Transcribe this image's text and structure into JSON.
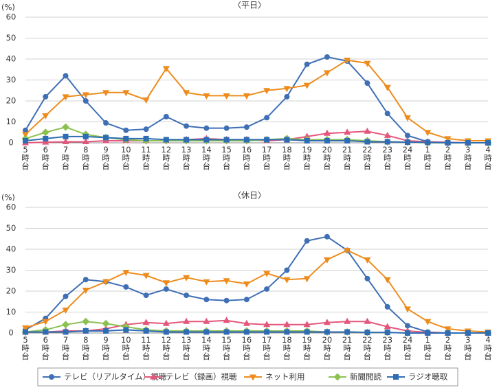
{
  "chart_data": [
    {
      "type": "line",
      "title": "〈平日〉",
      "y_label": "(%)",
      "ylim": [
        0,
        60
      ],
      "yticks": [
        0,
        10,
        20,
        30,
        40,
        50,
        60
      ],
      "grid": true,
      "categories": [
        "5時台",
        "6時台",
        "7時台",
        "8時台",
        "9時台",
        "10時台",
        "11時台",
        "12時台",
        "13時台",
        "14時台",
        "15時台",
        "16時台",
        "17時台",
        "18時台",
        "19時台",
        "20時台",
        "21時台",
        "22時台",
        "23時台",
        "24時台",
        "1時台",
        "2時台",
        "3時台",
        "4時台"
      ],
      "series": [
        {
          "name": "テレビ（リアルタイム）視聴",
          "color": "#3f6fb5",
          "marker": "circle",
          "values": [
            6,
            22,
            32,
            20,
            9.5,
            6,
            6.5,
            12.5,
            8,
            7,
            7,
            7.5,
            12,
            22,
            37.5,
            41,
            39,
            28.5,
            14,
            3.5,
            0.5,
            0,
            0,
            0
          ]
        },
        {
          "name": "テレビ（録画）視聴",
          "color": "#e4567b",
          "marker": "triangle",
          "values": [
            0,
            0.3,
            0.5,
            0.5,
            1,
            1,
            1,
            1,
            1.5,
            2,
            1.5,
            1.5,
            1,
            1.5,
            3,
            4.5,
            5,
            5.5,
            3.5,
            1,
            0.5,
            0.3,
            0,
            0
          ]
        },
        {
          "name": "ネット利用",
          "color": "#ed8c1c",
          "marker": "triangle-down",
          "values": [
            4,
            13,
            22,
            23,
            24,
            24,
            20.5,
            35.5,
            24,
            22.5,
            22.5,
            22.5,
            25,
            26,
            27.5,
            33.5,
            39.5,
            38,
            26.5,
            12,
            5,
            2,
            1,
            1
          ]
        },
        {
          "name": "新聞閲読",
          "color": "#8cc152",
          "marker": "diamond",
          "values": [
            2,
            5,
            7.5,
            4,
            2.5,
            1.5,
            1,
            1,
            1,
            1,
            1,
            1,
            1.5,
            2,
            1.5,
            1.5,
            1.5,
            1,
            0.5,
            0.3,
            0,
            0,
            0,
            0
          ]
        },
        {
          "name": "ラジオ聴取",
          "color": "#2e6db4",
          "marker": "square",
          "values": [
            1,
            2,
            3,
            3,
            2.5,
            2,
            2,
            1.5,
            1.5,
            1.5,
            1.5,
            1.5,
            1.5,
            1.5,
            1,
            1,
            1,
            0.5,
            0.5,
            0.3,
            0.2,
            0,
            0,
            0
          ]
        }
      ]
    },
    {
      "type": "line",
      "title": "〈休日〉",
      "y_label": "(%)",
      "ylim": [
        0,
        60
      ],
      "yticks": [
        0,
        10,
        20,
        30,
        40,
        50,
        60
      ],
      "grid": true,
      "categories": [
        "5時台",
        "6時台",
        "7時台",
        "8時台",
        "9時台",
        "10時台",
        "11時台",
        "12時台",
        "13時台",
        "14時台",
        "15時台",
        "16時台",
        "17時台",
        "18時台",
        "19時台",
        "20時台",
        "21時台",
        "22時台",
        "23時台",
        "24時台",
        "1時台",
        "2時台",
        "3時台",
        "4時台"
      ],
      "series": [
        {
          "name": "テレビ（リアルタイム）視聴",
          "color": "#3f6fb5",
          "marker": "circle",
          "values": [
            1.5,
            7,
            17.5,
            25.5,
            24.5,
            22,
            18,
            21,
            18,
            16,
            15.5,
            16,
            21,
            30,
            44,
            46,
            39.5,
            26,
            12.5,
            3.5,
            0.5,
            0,
            0,
            0
          ]
        },
        {
          "name": "テレビ（録画）視聴",
          "color": "#e4567b",
          "marker": "triangle",
          "values": [
            0.5,
            0.5,
            1,
            1,
            2,
            4,
            5,
            4.5,
            5.5,
            5.5,
            6,
            4.5,
            4,
            4,
            4,
            5,
            5.5,
            5.5,
            3,
            1,
            0.3,
            0,
            0,
            0
          ]
        },
        {
          "name": "ネット利用",
          "color": "#ed8c1c",
          "marker": "triangle-down",
          "values": [
            2.5,
            5.5,
            11,
            20.5,
            24.5,
            29,
            27.5,
            24,
            26.5,
            24.5,
            25,
            23.5,
            28.5,
            25.5,
            26,
            35,
            39.5,
            35,
            25.5,
            11.5,
            5.5,
            2,
            1,
            0.5
          ]
        },
        {
          "name": "新聞閲読",
          "color": "#8cc152",
          "marker": "diamond",
          "values": [
            0.5,
            1.5,
            4,
            5.5,
            4.5,
            3,
            1.5,
            1,
            1,
            1,
            1,
            1,
            1,
            1,
            1,
            0.5,
            0.5,
            0.3,
            0.3,
            0,
            0,
            0,
            0,
            0
          ]
        },
        {
          "name": "ラジオ聴取",
          "color": "#2e6db4",
          "marker": "square",
          "values": [
            0.5,
            0.5,
            0.5,
            1,
            1,
            1.5,
            1,
            0.5,
            0.5,
            0.5,
            0.5,
            0.5,
            0.5,
            0.5,
            0.5,
            0.5,
            0.5,
            0.3,
            0.3,
            0,
            0,
            0,
            0,
            0
          ]
        }
      ]
    }
  ]
}
